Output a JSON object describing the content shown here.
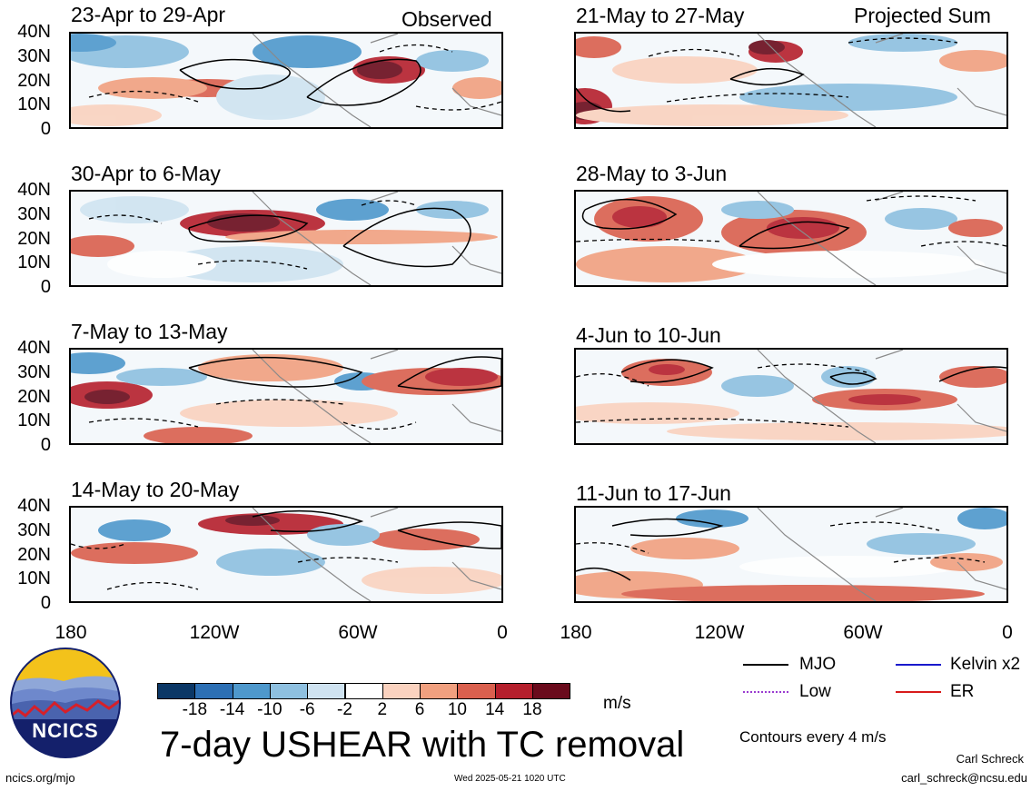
{
  "header": {
    "left_tag": "Observed",
    "right_tag": "Projected Sum"
  },
  "panels_left": [
    {
      "title": "23-Apr to 29-Apr"
    },
    {
      "title": "30-Apr to 6-May"
    },
    {
      "title": "7-May to 13-May"
    },
    {
      "title": "14-May to 20-May"
    }
  ],
  "panels_right": [
    {
      "title": "21-May to 27-May"
    },
    {
      "title": "28-May to 3-Jun"
    },
    {
      "title": "4-Jun to 10-Jun"
    },
    {
      "title": "11-Jun to 17-Jun"
    }
  ],
  "lat_labels": [
    "40N",
    "30N",
    "20N",
    "10N",
    "0"
  ],
  "lon_labels": [
    "180",
    "120W",
    "60W",
    "0"
  ],
  "colorbar": {
    "labels": [
      "-18",
      "-14",
      "-10",
      "-6",
      "-2",
      "2",
      "6",
      "10",
      "14",
      "18"
    ],
    "colors": [
      "#0b3766",
      "#2c6fb4",
      "#4e98cc",
      "#8ec0e0",
      "#cfe3f1",
      "#ffffff",
      "#fad2bf",
      "#f1a07f",
      "#da604e",
      "#b51f2c",
      "#6a0b1c"
    ],
    "unit": "m/s"
  },
  "legend": {
    "items": [
      {
        "label": "MJO",
        "color": "#000000"
      },
      {
        "label": "Kelvin x2",
        "color": "#1a1acc"
      },
      {
        "label": "Low",
        "color": "#9a3cd0"
      },
      {
        "label": "ER",
        "color": "#d81a1a"
      }
    ],
    "contour_note": "Contours every 4 m/s"
  },
  "main_title": "7-day USHEAR with TC removal",
  "logo": {
    "text": "NCICS"
  },
  "footer": {
    "url": "ncics.org/mjo",
    "timestamp": "Wed 2025-05-21 1020 UTC",
    "author": "Carl Schreck",
    "email": "carl_schreck@ncsu.edu"
  }
}
